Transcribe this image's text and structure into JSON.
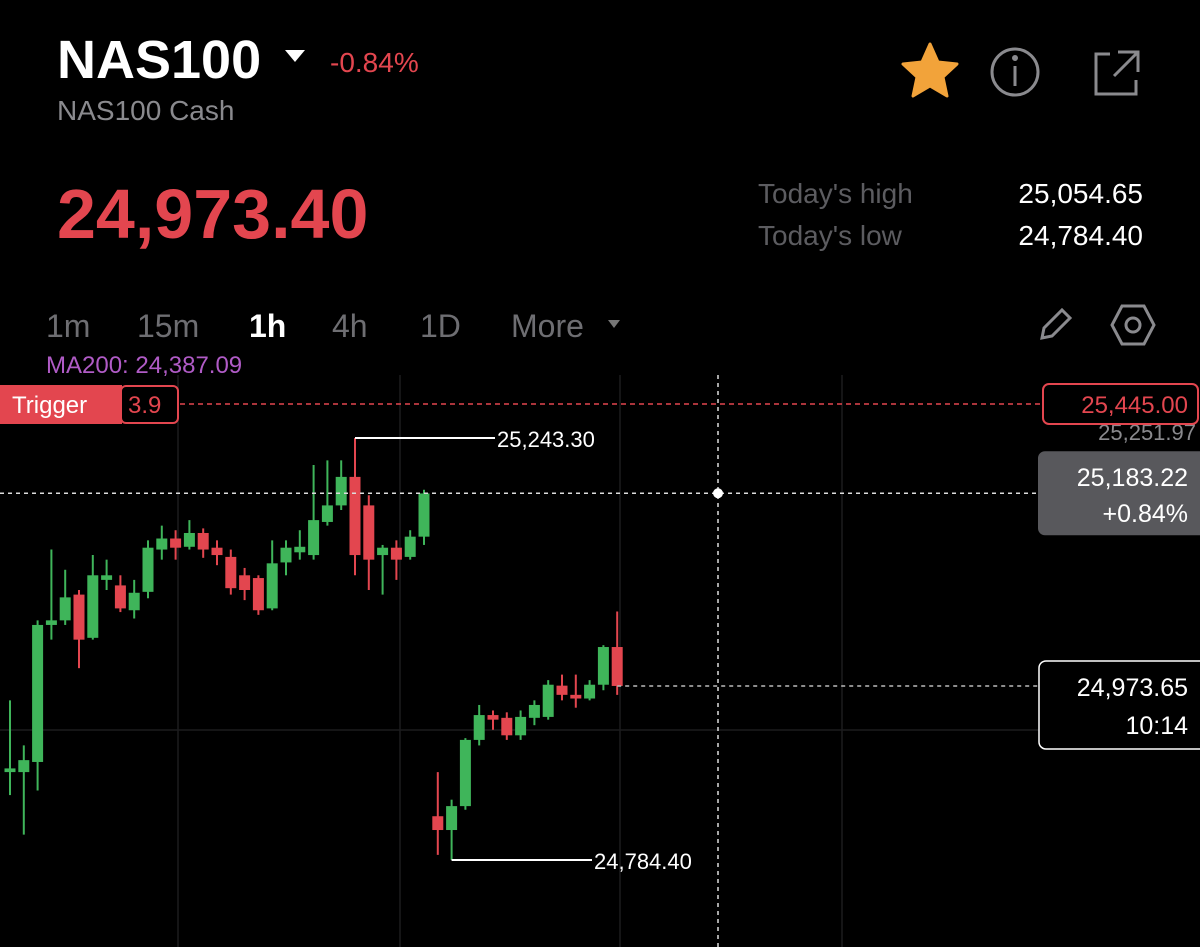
{
  "header": {
    "symbol": "NAS100",
    "change": "-0.84%",
    "name": "NAS100 Cash",
    "price": "24,973.40",
    "stats": [
      {
        "label": "Today's high",
        "value": "25,054.65"
      },
      {
        "label": "Today's low",
        "value": "24,784.40"
      }
    ]
  },
  "timeframes": {
    "items": [
      "1m",
      "15m",
      "1h",
      "4h",
      "1D",
      "More"
    ],
    "active": 2
  },
  "chart": {
    "type": "candlestick",
    "indicator": "MA200: 24,387.09",
    "ylim": [
      24689.8,
      25311.8
    ],
    "up_color": "#3fb55a",
    "down_color": "#e3464f",
    "candles": {
      "open": [
        24880,
        24880,
        24891,
        25040,
        25045,
        25073,
        25026,
        25089,
        25083,
        25056,
        25076,
        25122,
        25134,
        25125,
        25140,
        25124,
        25114,
        25094,
        25091,
        25058,
        25108,
        25119,
        25116,
        25152,
        25170,
        25201,
        25170,
        25116,
        25124,
        25114,
        25136,
        24832,
        24817,
        24843,
        24915,
        24942,
        24939,
        24920,
        24939,
        24940,
        24974,
        24964,
        24960,
        24975,
        25016
      ],
      "high": [
        24958,
        24909,
        25045,
        25122,
        25100,
        25078,
        25116,
        25111,
        25094,
        25089,
        25132,
        25148,
        25143,
        25154,
        25145,
        25132,
        25122,
        25102,
        25094,
        25132,
        25132,
        25143,
        25214,
        25219,
        25219,
        25243.3,
        25181,
        25127,
        25132,
        25143,
        25187,
        24880,
        24850,
        24917,
        24953,
        24947,
        24945,
        24947,
        24958,
        24980,
        24986,
        24986,
        24980,
        25018,
        25054.65
      ],
      "low": [
        24855,
        24812,
        24860,
        25024,
        25040,
        24993,
        25024,
        25078,
        25054,
        25047,
        25069,
        25111,
        25111,
        25122,
        25113,
        25105,
        25073,
        25067,
        25051,
        25056,
        25094,
        25111,
        25111,
        25148,
        25165,
        25094,
        25078,
        25073,
        25089,
        25111,
        25127,
        24790,
        24784.4,
        24839,
        24909,
        24926,
        24915,
        24915,
        24931,
        24937,
        24958,
        24950,
        24958,
        24969,
        24964
      ],
      "close": [
        24884,
        24893,
        25040,
        25045,
        25070,
        25024,
        25094,
        25094,
        25058,
        25075,
        25124,
        25134,
        25124,
        25140,
        25122,
        25116,
        25080,
        25078,
        25056,
        25107,
        25124,
        25125,
        25154,
        25170,
        25201,
        25116,
        25111,
        25124,
        25111,
        25136,
        25183,
        24817,
        24843,
        24915,
        24942,
        24937,
        24920,
        24940,
        24953,
        24975,
        24964,
        24960,
        24975,
        25016,
        24973.65
      ]
    },
    "trigger": {
      "label": "Trigger",
      "value": "3.9",
      "price": "25,445.00"
    },
    "axis_top": {
      "value": 25251.97,
      "label": "25,251.97"
    },
    "crosshair": {
      "value": 25183.22,
      "label": "25,183.22",
      "change": "+0.84%"
    },
    "last": {
      "value": 24973.65,
      "label": "24,973.65",
      "time": "10:14"
    },
    "high_marker": {
      "value": 25243.3,
      "label": "25,243.30"
    },
    "low_marker": {
      "value": 24784.4,
      "label": "24,784.40"
    }
  }
}
